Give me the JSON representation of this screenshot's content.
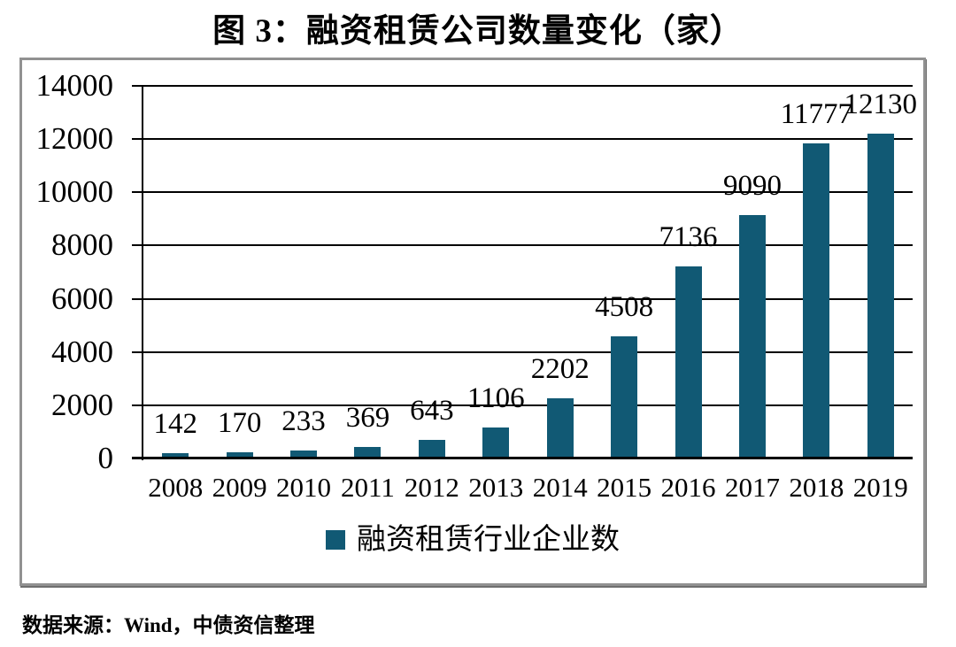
{
  "title": "图 3：融资租赁公司数量变化（家）",
  "source_note": "数据来源：Wind，中债资信整理",
  "chart_data": {
    "type": "bar",
    "title": "图 3：融资租赁公司数量变化（家）",
    "categories": [
      "2008",
      "2009",
      "2010",
      "2011",
      "2012",
      "2013",
      "2014",
      "2015",
      "2016",
      "2017",
      "2018",
      "2019"
    ],
    "series": [
      {
        "name": "融资租赁行业企业数",
        "values": [
          142,
          170,
          233,
          369,
          643,
          1106,
          2202,
          4508,
          7136,
          9090,
          11777,
          12130
        ]
      }
    ],
    "data_labels": [
      142,
      170,
      233,
      369,
      643,
      1106,
      2202,
      4508,
      7136,
      9090,
      11777,
      12130
    ],
    "xlabel": "",
    "ylabel": "",
    "ylim": [
      0,
      14000
    ],
    "yticks": [
      0,
      2000,
      4000,
      6000,
      8000,
      10000,
      12000,
      14000
    ],
    "grid": true,
    "legend_position": "bottom",
    "colors": {
      "bar": "#115974",
      "gridline": "#000000",
      "axis": "#000000",
      "frame_border": "#919191",
      "text": "#000000"
    }
  }
}
